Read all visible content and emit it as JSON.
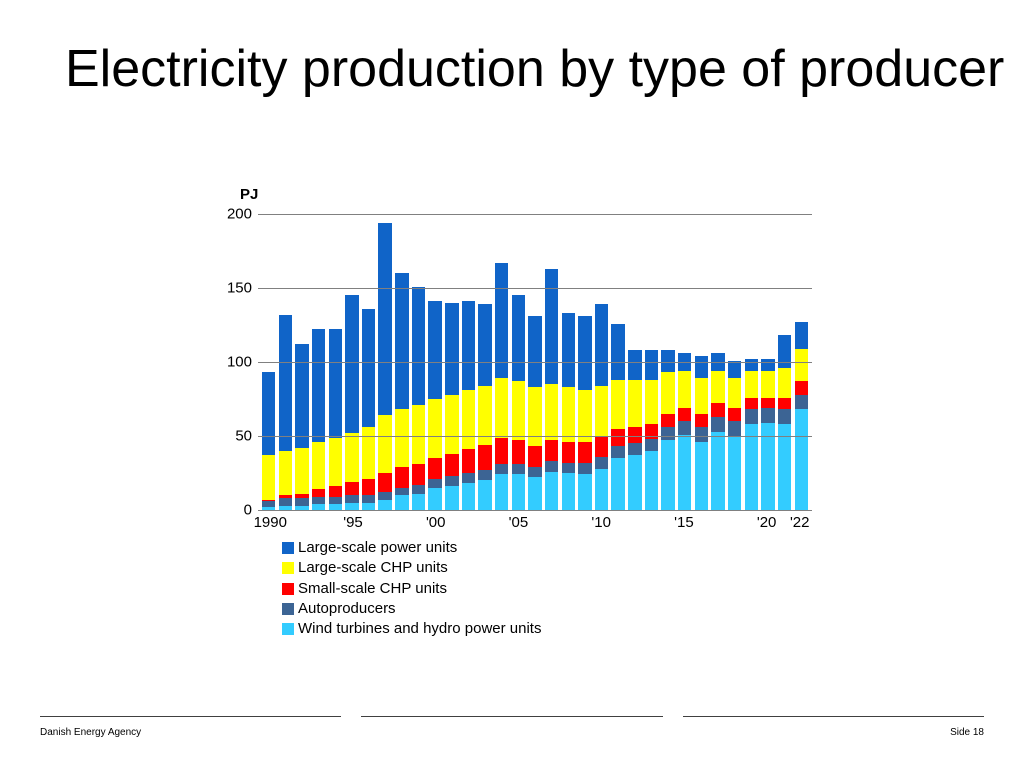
{
  "title": "Electricity production by type of producer",
  "footer": {
    "left": "Danish Energy Agency",
    "right": "Side 18"
  },
  "chart": {
    "type": "stacked-bar",
    "y_unit_label": "PJ",
    "ylim": [
      0,
      200
    ],
    "yticks": [
      0,
      50,
      100,
      150,
      200
    ],
    "grid_color": "#808080",
    "background_color": "#ffffff",
    "label_fontsize": 15,
    "xticks": [
      {
        "index": 0,
        "label": "1990"
      },
      {
        "index": 5,
        "label": "'95"
      },
      {
        "index": 10,
        "label": "'00"
      },
      {
        "index": 15,
        "label": "'05"
      },
      {
        "index": 20,
        "label": "'10"
      },
      {
        "index": 25,
        "label": "'15"
      },
      {
        "index": 30,
        "label": "'20"
      },
      {
        "index": 32,
        "label": "'22"
      }
    ],
    "series": [
      {
        "key": "wind",
        "label": "Wind turbines and hydro power units",
        "color": "#33ccff"
      },
      {
        "key": "auto",
        "label": "Autoproducers",
        "color": "#3c6494"
      },
      {
        "key": "small",
        "label": "Small-scale CHP units",
        "color": "#ff0000"
      },
      {
        "key": "chp",
        "label": "Large-scale CHP units",
        "color": "#ffff00"
      },
      {
        "key": "large",
        "label": "Large-scale power units",
        "color": "#1064c8"
      }
    ],
    "legend_order": [
      "large",
      "chp",
      "small",
      "auto",
      "wind"
    ],
    "years": [
      1990,
      1991,
      1992,
      1993,
      1994,
      1995,
      1996,
      1997,
      1998,
      1999,
      2000,
      2001,
      2002,
      2003,
      2004,
      2005,
      2006,
      2007,
      2008,
      2009,
      2010,
      2011,
      2012,
      2013,
      2014,
      2015,
      2016,
      2017,
      2018,
      2019,
      2020,
      2021,
      2022
    ],
    "data": {
      "wind": [
        2,
        3,
        3,
        4,
        4,
        5,
        5,
        7,
        10,
        11,
        15,
        16,
        18,
        20,
        24,
        24,
        22,
        26,
        25,
        24,
        28,
        35,
        37,
        40,
        47,
        51,
        46,
        53,
        50,
        58,
        59,
        58,
        68
      ],
      "auto": [
        4,
        5,
        5,
        5,
        5,
        5,
        5,
        5,
        5,
        6,
        6,
        7,
        7,
        7,
        7,
        7,
        7,
        7,
        7,
        8,
        8,
        8,
        8,
        8,
        9,
        9,
        10,
        10,
        10,
        10,
        10,
        10,
        10
      ],
      "small": [
        1,
        2,
        3,
        5,
        7,
        9,
        11,
        13,
        14,
        14,
        14,
        15,
        16,
        17,
        18,
        16,
        14,
        14,
        14,
        14,
        14,
        12,
        11,
        10,
        9,
        9,
        9,
        9,
        9,
        8,
        7,
        8,
        9
      ],
      "chp": [
        30,
        30,
        31,
        32,
        33,
        33,
        35,
        39,
        39,
        40,
        40,
        40,
        40,
        40,
        40,
        40,
        40,
        38,
        37,
        35,
        34,
        33,
        32,
        30,
        28,
        25,
        24,
        22,
        20,
        18,
        18,
        20,
        22
      ],
      "large": [
        56,
        92,
        70,
        76,
        73,
        93,
        80,
        130,
        92,
        80,
        66,
        62,
        60,
        55,
        78,
        58,
        48,
        78,
        50,
        50,
        55,
        38,
        20,
        20,
        15,
        12,
        15,
        12,
        12,
        8,
        8,
        22,
        18
      ]
    }
  }
}
